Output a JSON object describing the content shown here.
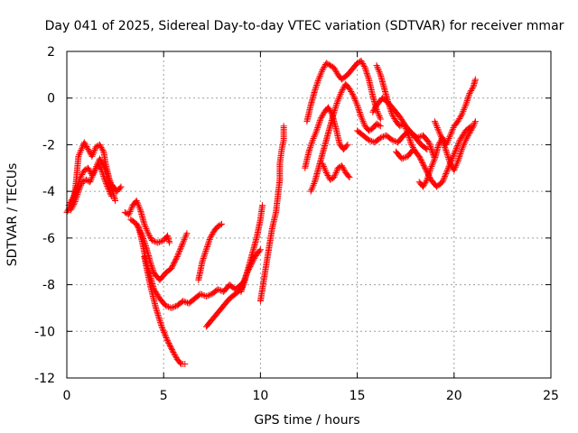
{
  "chart_data": {
    "type": "scatter",
    "title": "Day 041 of 2025, Sidereal Day-to-day VTEC variation (SDTVAR) for receiver mmar",
    "xlabel": "GPS time / hours",
    "ylabel": "SDTVAR / TECUs",
    "xlim": [
      0,
      25
    ],
    "ylim": [
      -12,
      2
    ],
    "x_ticks": [
      "0",
      "5",
      "10",
      "15",
      "20",
      "25"
    ],
    "y_ticks": [
      "-12",
      "-10",
      "-8",
      "-6",
      "-4",
      "-2",
      "0",
      "2"
    ],
    "grid": true,
    "legend": "none",
    "marker": "+",
    "series_color": "#ff0000",
    "series": [
      {
        "values": [
          [
            0.0,
            -4.9
          ],
          [
            0.2,
            -4.6
          ],
          [
            0.4,
            -4.2
          ],
          [
            0.5,
            -3.4
          ],
          [
            0.6,
            -2.5
          ],
          [
            0.8,
            -2.1
          ],
          [
            0.9,
            -1.9
          ],
          [
            1.1,
            -2.2
          ],
          [
            1.3,
            -2.5
          ],
          [
            1.5,
            -2.1
          ],
          [
            1.7,
            -2.0
          ],
          [
            1.9,
            -2.3
          ],
          [
            2.0,
            -2.8
          ],
          [
            2.2,
            -3.5
          ],
          [
            2.4,
            -4.1
          ],
          [
            2.5,
            -4.4
          ]
        ]
      },
      {
        "values": [
          [
            0.1,
            -4.6
          ],
          [
            0.3,
            -4.3
          ],
          [
            0.5,
            -3.9
          ],
          [
            0.7,
            -3.4
          ],
          [
            0.9,
            -3.1
          ],
          [
            1.1,
            -3.0
          ],
          [
            1.3,
            -3.3
          ],
          [
            1.5,
            -3.0
          ],
          [
            1.7,
            -2.6
          ],
          [
            1.9,
            -2.9
          ],
          [
            2.1,
            -3.3
          ],
          [
            2.3,
            -3.7
          ],
          [
            2.6,
            -4.0
          ],
          [
            2.8,
            -3.8
          ]
        ]
      },
      {
        "values": [
          [
            0.2,
            -4.8
          ],
          [
            0.4,
            -4.5
          ],
          [
            0.6,
            -4.0
          ],
          [
            0.8,
            -3.6
          ],
          [
            1.0,
            -3.5
          ],
          [
            1.2,
            -3.6
          ],
          [
            1.4,
            -3.2
          ],
          [
            1.6,
            -2.8
          ],
          [
            1.8,
            -3.1
          ],
          [
            2.0,
            -3.6
          ],
          [
            2.3,
            -4.2
          ]
        ]
      },
      {
        "values": [
          [
            3.0,
            -4.9
          ],
          [
            3.2,
            -5.0
          ],
          [
            3.4,
            -4.6
          ],
          [
            3.6,
            -4.4
          ],
          [
            3.8,
            -4.8
          ],
          [
            4.0,
            -5.4
          ],
          [
            4.2,
            -5.8
          ],
          [
            4.4,
            -6.1
          ],
          [
            4.7,
            -6.2
          ],
          [
            5.0,
            -6.1
          ],
          [
            5.2,
            -5.9
          ],
          [
            5.3,
            -6.2
          ]
        ]
      },
      {
        "values": [
          [
            3.3,
            -5.2
          ],
          [
            3.6,
            -5.4
          ],
          [
            3.9,
            -5.9
          ],
          [
            4.1,
            -6.4
          ],
          [
            4.3,
            -7.0
          ],
          [
            4.5,
            -7.5
          ],
          [
            4.8,
            -7.8
          ],
          [
            5.1,
            -7.5
          ],
          [
            5.4,
            -7.3
          ],
          [
            5.7,
            -6.8
          ],
          [
            6.0,
            -6.2
          ],
          [
            6.2,
            -5.8
          ]
        ]
      },
      {
        "values": [
          [
            3.7,
            -5.5
          ],
          [
            3.9,
            -6.2
          ],
          [
            4.1,
            -7.0
          ],
          [
            4.3,
            -7.6
          ],
          [
            4.5,
            -8.2
          ],
          [
            4.8,
            -8.6
          ],
          [
            5.1,
            -8.9
          ],
          [
            5.4,
            -9.0
          ],
          [
            5.7,
            -8.9
          ],
          [
            6.0,
            -8.7
          ],
          [
            6.3,
            -8.8
          ],
          [
            6.6,
            -8.6
          ],
          [
            6.9,
            -8.4
          ],
          [
            7.2,
            -8.5
          ],
          [
            7.5,
            -8.4
          ],
          [
            7.8,
            -8.2
          ],
          [
            8.1,
            -8.3
          ],
          [
            8.4,
            -8.0
          ],
          [
            8.7,
            -8.2
          ],
          [
            9.0,
            -8.0
          ],
          [
            9.2,
            -7.8
          ]
        ]
      },
      {
        "values": [
          [
            4.0,
            -6.8
          ],
          [
            4.3,
            -8.0
          ],
          [
            4.6,
            -9.0
          ],
          [
            4.9,
            -9.8
          ],
          [
            5.2,
            -10.4
          ],
          [
            5.5,
            -10.9
          ],
          [
            5.7,
            -11.2
          ],
          [
            5.9,
            -11.4
          ],
          [
            6.1,
            -11.4
          ]
        ]
      },
      {
        "values": [
          [
            6.8,
            -7.8
          ],
          [
            7.0,
            -7.0
          ],
          [
            7.2,
            -6.5
          ],
          [
            7.4,
            -6.0
          ],
          [
            7.6,
            -5.7
          ],
          [
            7.8,
            -5.5
          ],
          [
            8.0,
            -5.4
          ]
        ]
      },
      {
        "values": [
          [
            7.2,
            -9.8
          ],
          [
            7.5,
            -9.5
          ],
          [
            7.8,
            -9.2
          ],
          [
            8.1,
            -8.9
          ],
          [
            8.4,
            -8.6
          ],
          [
            8.7,
            -8.4
          ],
          [
            9.0,
            -8.2
          ],
          [
            9.3,
            -7.5
          ],
          [
            9.6,
            -7.0
          ],
          [
            9.8,
            -6.7
          ],
          [
            10.0,
            -6.5
          ]
        ]
      },
      {
        "values": [
          [
            9.0,
            -8.3
          ],
          [
            9.2,
            -7.8
          ],
          [
            9.4,
            -7.2
          ],
          [
            9.6,
            -6.6
          ],
          [
            9.8,
            -6.0
          ],
          [
            10.0,
            -5.2
          ],
          [
            10.1,
            -4.6
          ]
        ]
      },
      {
        "values": [
          [
            10.0,
            -8.7
          ],
          [
            10.6,
            -5.6
          ],
          [
            10.8,
            -4.9
          ],
          [
            10.9,
            -4.2
          ],
          [
            11.0,
            -3.5
          ],
          [
            11.0,
            -2.8
          ],
          [
            11.1,
            -2.2
          ],
          [
            11.2,
            -1.8
          ],
          [
            11.2,
            -1.2
          ]
        ]
      },
      {
        "values": [
          [
            12.3,
            -3.0
          ],
          [
            12.5,
            -2.3
          ],
          [
            12.7,
            -1.8
          ],
          [
            12.9,
            -1.4
          ],
          [
            13.1,
            -0.9
          ],
          [
            13.3,
            -0.6
          ],
          [
            13.5,
            -0.4
          ],
          [
            13.7,
            -0.7
          ],
          [
            13.9,
            -1.3
          ],
          [
            14.1,
            -2.0
          ],
          [
            14.3,
            -2.2
          ],
          [
            14.5,
            -2.0
          ]
        ]
      },
      {
        "values": [
          [
            12.4,
            -1.0
          ],
          [
            12.6,
            -0.3
          ],
          [
            12.8,
            0.3
          ],
          [
            13.0,
            0.8
          ],
          [
            13.2,
            1.2
          ],
          [
            13.4,
            1.5
          ],
          [
            13.6,
            1.4
          ],
          [
            13.8,
            1.3
          ],
          [
            14.0,
            1.0
          ],
          [
            14.2,
            0.8
          ],
          [
            14.5,
            1.0
          ],
          [
            14.8,
            1.3
          ],
          [
            15.0,
            1.5
          ],
          [
            15.2,
            1.6
          ],
          [
            15.4,
            1.3
          ],
          [
            15.6,
            0.8
          ],
          [
            15.8,
            0.1
          ],
          [
            16.0,
            -0.5
          ],
          [
            16.2,
            -0.9
          ]
        ]
      },
      {
        "values": [
          [
            12.6,
            -4.0
          ],
          [
            12.8,
            -3.6
          ],
          [
            13.0,
            -3.0
          ],
          [
            13.2,
            -2.4
          ],
          [
            13.4,
            -1.8
          ],
          [
            13.6,
            -1.2
          ],
          [
            13.8,
            -0.6
          ],
          [
            14.0,
            -0.1
          ],
          [
            14.2,
            0.3
          ],
          [
            14.4,
            0.6
          ],
          [
            14.6,
            0.4
          ],
          [
            14.8,
            0.1
          ],
          [
            15.0,
            -0.3
          ],
          [
            15.2,
            -0.8
          ],
          [
            15.4,
            -1.2
          ],
          [
            15.6,
            -1.4
          ],
          [
            15.8,
            -1.3
          ],
          [
            16.0,
            -1.1
          ],
          [
            16.2,
            -1.2
          ]
        ]
      },
      {
        "values": [
          [
            13.2,
            -2.8
          ],
          [
            13.4,
            -3.2
          ],
          [
            13.6,
            -3.5
          ],
          [
            13.8,
            -3.4
          ],
          [
            14.0,
            -3.0
          ],
          [
            14.2,
            -2.9
          ],
          [
            14.4,
            -3.2
          ],
          [
            14.6,
            -3.4
          ]
        ]
      },
      {
        "values": [
          [
            15.0,
            -1.4
          ],
          [
            15.3,
            -1.6
          ],
          [
            15.6,
            -1.8
          ],
          [
            15.9,
            -1.9
          ],
          [
            16.2,
            -1.7
          ],
          [
            16.5,
            -1.6
          ],
          [
            16.8,
            -1.8
          ],
          [
            17.1,
            -1.9
          ],
          [
            17.4,
            -1.6
          ],
          [
            17.7,
            -1.4
          ],
          [
            18.0,
            -1.7
          ],
          [
            18.3,
            -2.0
          ],
          [
            18.6,
            -2.2
          ]
        ]
      },
      {
        "values": [
          [
            16.0,
            1.4
          ],
          [
            16.2,
            1.0
          ],
          [
            16.4,
            0.4
          ],
          [
            16.6,
            -0.2
          ],
          [
            16.8,
            -0.7
          ],
          [
            17.0,
            -1.0
          ],
          [
            17.2,
            -1.2
          ],
          [
            17.4,
            -1.1
          ],
          [
            17.6,
            -1.5
          ],
          [
            17.8,
            -2.0
          ],
          [
            18.0,
            -2.3
          ]
        ]
      },
      {
        "values": [
          [
            15.8,
            -0.6
          ],
          [
            16.0,
            -0.3
          ],
          [
            16.3,
            0.0
          ],
          [
            16.6,
            -0.2
          ],
          [
            16.9,
            -0.5
          ],
          [
            17.2,
            -0.8
          ],
          [
            17.5,
            -1.2
          ],
          [
            17.8,
            -1.5
          ],
          [
            18.1,
            -1.7
          ],
          [
            18.4,
            -1.6
          ],
          [
            18.7,
            -1.9
          ],
          [
            19.0,
            -2.6
          ]
        ]
      },
      {
        "values": [
          [
            17.0,
            -2.3
          ],
          [
            17.3,
            -2.6
          ],
          [
            17.6,
            -2.5
          ],
          [
            17.9,
            -2.2
          ],
          [
            18.2,
            -2.5
          ],
          [
            18.5,
            -3.0
          ],
          [
            18.8,
            -3.5
          ],
          [
            19.1,
            -3.8
          ],
          [
            19.4,
            -3.6
          ],
          [
            19.7,
            -3.0
          ],
          [
            20.0,
            -2.4
          ],
          [
            20.3,
            -1.8
          ],
          [
            20.6,
            -1.4
          ],
          [
            20.9,
            -1.2
          ]
        ]
      },
      {
        "values": [
          [
            18.2,
            -3.6
          ],
          [
            18.4,
            -3.8
          ],
          [
            18.6,
            -3.5
          ],
          [
            18.8,
            -3.0
          ],
          [
            19.0,
            -2.6
          ],
          [
            19.2,
            -2.0
          ],
          [
            19.4,
            -1.7
          ],
          [
            19.6,
            -2.0
          ],
          [
            19.8,
            -1.6
          ],
          [
            20.0,
            -1.2
          ],
          [
            20.2,
            -1.0
          ],
          [
            20.4,
            -0.7
          ],
          [
            20.6,
            -0.3
          ],
          [
            20.8,
            0.2
          ],
          [
            21.0,
            0.5
          ],
          [
            21.1,
            0.8
          ]
        ]
      },
      {
        "values": [
          [
            19.0,
            -1.0
          ],
          [
            19.2,
            -1.4
          ],
          [
            19.4,
            -1.8
          ],
          [
            19.6,
            -2.3
          ],
          [
            19.8,
            -2.8
          ],
          [
            20.0,
            -3.1
          ],
          [
            20.2,
            -2.7
          ],
          [
            20.4,
            -2.2
          ],
          [
            20.6,
            -1.8
          ],
          [
            20.8,
            -1.5
          ],
          [
            21.0,
            -1.2
          ],
          [
            21.1,
            -1.0
          ]
        ]
      }
    ]
  }
}
